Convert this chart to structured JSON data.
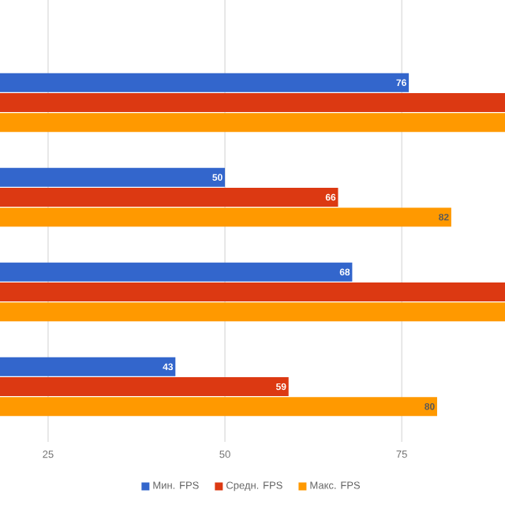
{
  "chart_data": {
    "type": "bar",
    "orientation": "horizontal",
    "categories": [
      null,
      null,
      null,
      null
    ],
    "series": [
      {
        "name": "Мин. FPS",
        "color": "#3366cc",
        "values": [
          76,
          50,
          68,
          43
        ],
        "value_labels": [
          "76",
          "50",
          "68",
          "43"
        ]
      },
      {
        "name": "Средн. FPS",
        "color": "#dc3912",
        "values": [
          89.6,
          66,
          89.6,
          59
        ],
        "value_labels": [
          null,
          "66",
          null,
          "59"
        ]
      },
      {
        "name": "Макс. FPS",
        "color": "#ff9900",
        "values": [
          89.6,
          82,
          89.6,
          80
        ],
        "value_labels": [
          null,
          "82",
          null,
          "80"
        ]
      }
    ],
    "xlim": [
      18.2,
      89.6
    ],
    "xticks": [
      25,
      50,
      75
    ],
    "grid": "x",
    "legend": "bottom"
  }
}
